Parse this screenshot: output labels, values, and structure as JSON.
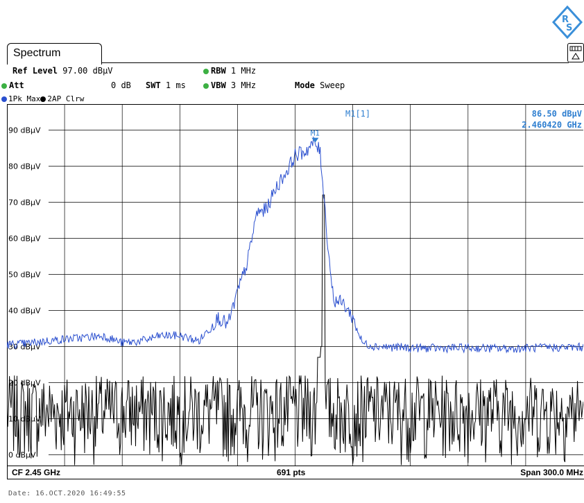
{
  "window": {
    "tab_title": "Spectrum",
    "date_line": "Date: 16.OCT.2020  16:49:55"
  },
  "settings": {
    "ref_level_label": "Ref Level",
    "ref_level_value": "97.00 dBµV",
    "att_label": "Att",
    "att_value": "0 dB",
    "swt_label": "SWT",
    "swt_value": "1 ms",
    "rbw_label": "RBW",
    "rbw_value": "1 MHz",
    "vbw_label": "VBW",
    "vbw_value": "3 MHz",
    "mode_label": "Mode",
    "mode_value": "Sweep"
  },
  "traces_bar": {
    "trace1": "1Pk Max",
    "trace2": "2AP Clrw"
  },
  "colors": {
    "trace1": "#2a4fcf",
    "trace2": "#000000",
    "marker": "#2f7fd0",
    "status_dot": "#3cb043"
  },
  "footer": {
    "cf": "CF 2.45 GHz",
    "points": "691 pts",
    "span": "Span 300.0 MHz"
  },
  "chart_data": {
    "type": "line",
    "x_unit": "GHz",
    "xlim": [
      2.3,
      2.6
    ],
    "ylim": [
      -3,
      97
    ],
    "yticks": [
      90,
      80,
      70,
      60,
      50,
      40,
      30,
      20,
      10,
      0
    ],
    "ytick_labels": [
      "90 dBµV",
      "80 dBµV",
      "70 dBµV",
      "60 dBµV",
      "50 dBµV",
      "40 dBµV",
      "30 dBµV",
      "20 dBµV",
      "10 dBµV",
      "0 dBµV"
    ],
    "grid": true,
    "marker": {
      "label": "M1",
      "readout_label": "M1[1]",
      "x": 2.46042,
      "y": 86.5,
      "readout_value": "86.50 dBµV",
      "readout_freq": "2.460420 GHz"
    },
    "series": [
      {
        "name": "1Pk Max",
        "x": [
          2.3,
          2.31,
          2.32,
          2.33,
          2.34,
          2.35,
          2.36,
          2.37,
          2.38,
          2.39,
          2.4,
          2.41,
          2.415,
          2.42,
          2.425,
          2.43,
          2.435,
          2.44,
          2.445,
          2.45,
          2.455,
          2.46,
          2.463,
          2.465,
          2.467,
          2.47,
          2.475,
          2.48,
          2.485,
          2.49,
          2.5,
          2.52,
          2.54,
          2.56,
          2.58,
          2.6
        ],
        "y": [
          30.5,
          30.8,
          31.5,
          32,
          32.5,
          33,
          31,
          31.5,
          33,
          33,
          31.5,
          38,
          36,
          45,
          53,
          67,
          68,
          74,
          78,
          83,
          84,
          86.5,
          84,
          72,
          58,
          43,
          42,
          38,
          31,
          30.2,
          29.8,
          29.5,
          29.6,
          29.4,
          29.7,
          29.8
        ]
      },
      {
        "name": "2AP Clrw",
        "x": [
          2.3,
          2.6
        ],
        "y": [
          10,
          10
        ],
        "noise_range": [
          -3,
          22
        ],
        "peaks": [
          {
            "x": 2.4645,
            "y": 72
          },
          {
            "x": 2.4635,
            "y": 30
          },
          {
            "x": 2.4625,
            "y": 27
          }
        ]
      }
    ]
  }
}
